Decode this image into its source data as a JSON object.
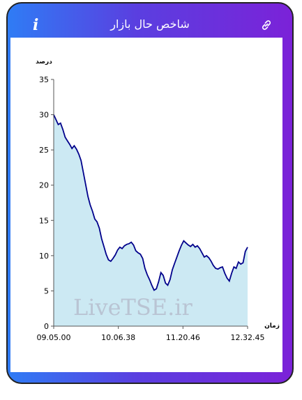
{
  "header": {
    "title": "شاخص حال بازار",
    "info_icon": "info-icon",
    "link_icon": "link-icon",
    "gradient": [
      "#2f7cf5",
      "#7b22d8"
    ]
  },
  "watermark": "LiveTSE.ir",
  "chart_data": {
    "type": "area",
    "ylabel": "درصد",
    "xlabel": "زمان",
    "ylim": [
      0,
      35
    ],
    "yticks": [
      0,
      5,
      10,
      15,
      20,
      25,
      30,
      35
    ],
    "x_tick_labels": [
      "09.05.00",
      "10.06.38",
      "11.20.46",
      "12.32.45"
    ],
    "line_color": "#00008b",
    "fill_color": "#cce9f3",
    "grid": false,
    "values": [
      30,
      29.3,
      28.6,
      28.8,
      27.9,
      26.8,
      26.3,
      25.8,
      25.2,
      25.6,
      25.1,
      24.4,
      23.5,
      21.8,
      20.1,
      18.4,
      17.2,
      16.3,
      15.2,
      14.8,
      13.9,
      12.4,
      11.3,
      10.2,
      9.4,
      9.2,
      9.6,
      10.1,
      10.8,
      11.2,
      11.0,
      11.4,
      11.6,
      11.7,
      11.9,
      11.5,
      10.7,
      10.4,
      10.2,
      9.6,
      8.2,
      7.3,
      6.6,
      5.8,
      5.1,
      5.3,
      6.3,
      7.6,
      7.2,
      6.1,
      5.8,
      6.6,
      8.0,
      8.9,
      9.8,
      10.7,
      11.5,
      12.1,
      11.8,
      11.5,
      11.3,
      11.6,
      11.2,
      11.4,
      11.0,
      10.4,
      9.8,
      10.0,
      9.7,
      9.2,
      8.6,
      8.2,
      8.1,
      8.3,
      8.4,
      7.5,
      6.8,
      6.4,
      7.5,
      8.4,
      8.2,
      9.1,
      8.8,
      9.0,
      10.6,
      11.2
    ]
  }
}
